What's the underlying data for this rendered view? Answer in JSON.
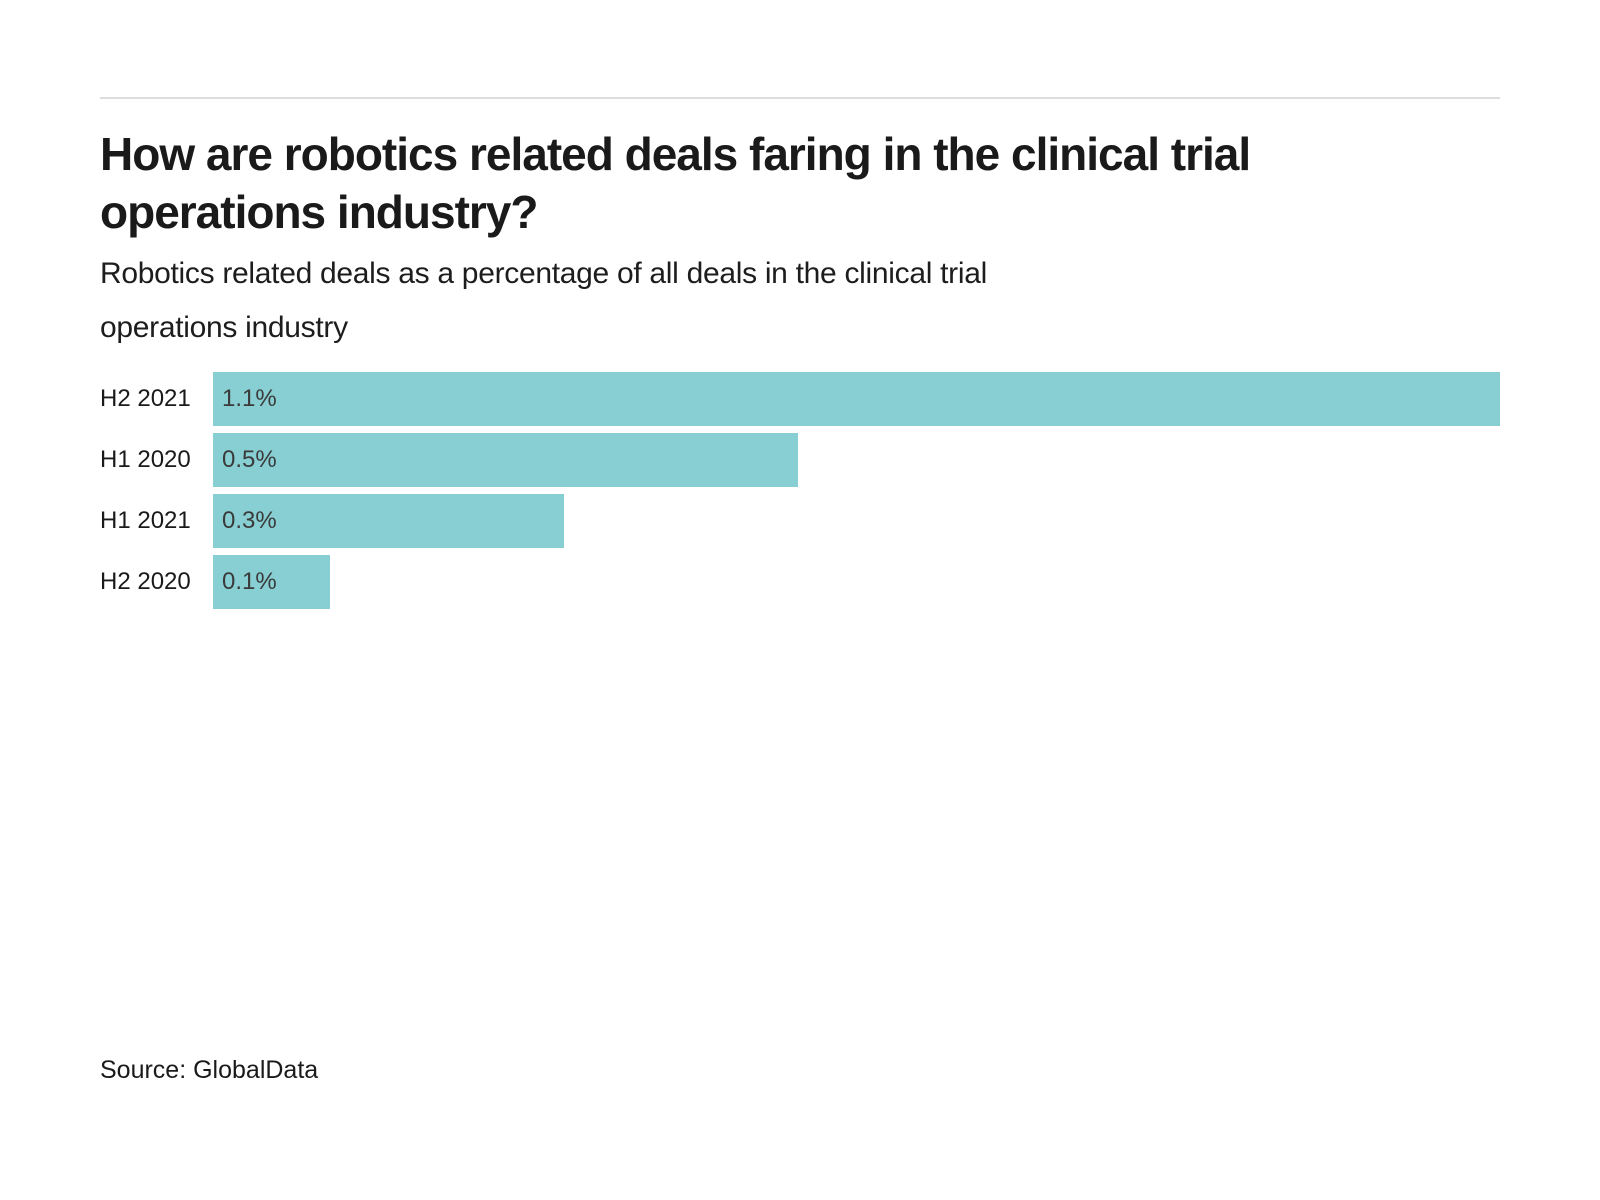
{
  "header": {
    "title_lines": [
      "How are robotics related deals faring in the clinical trial",
      "operations industry?"
    ],
    "subtitle_lines": [
      "Robotics related deals as a percentage of all deals in the clinical trial",
      "operations industry"
    ]
  },
  "footer": {
    "source": "Source: GlobalData"
  },
  "colors": {
    "bar": "#87cfd3",
    "title_text": "#1a1a1a",
    "subtitle_text": "#1d1d1d",
    "value_label_text": "#3a3a3a",
    "divider": "#dddddd",
    "background": "#ffffff"
  },
  "chart_data": {
    "type": "bar",
    "orientation": "horizontal",
    "title": "How are robotics related deals faring in the clinical trial operations industry?",
    "subtitle": "Robotics related deals as a percentage of all deals in the clinical trial operations industry",
    "categories": [
      "H2 2021",
      "H1 2020",
      "H1 2021",
      "H2 2020"
    ],
    "values": [
      1.1,
      0.5,
      0.3,
      0.1
    ],
    "value_labels": [
      "1.1%",
      "0.5%",
      "0.3%",
      "0.1%"
    ],
    "xlabel": "",
    "ylabel": "",
    "xlim": [
      0,
      1.1
    ],
    "grid": false,
    "legend": false,
    "value_label_position": "inside-left",
    "source": "Source: GlobalData"
  }
}
